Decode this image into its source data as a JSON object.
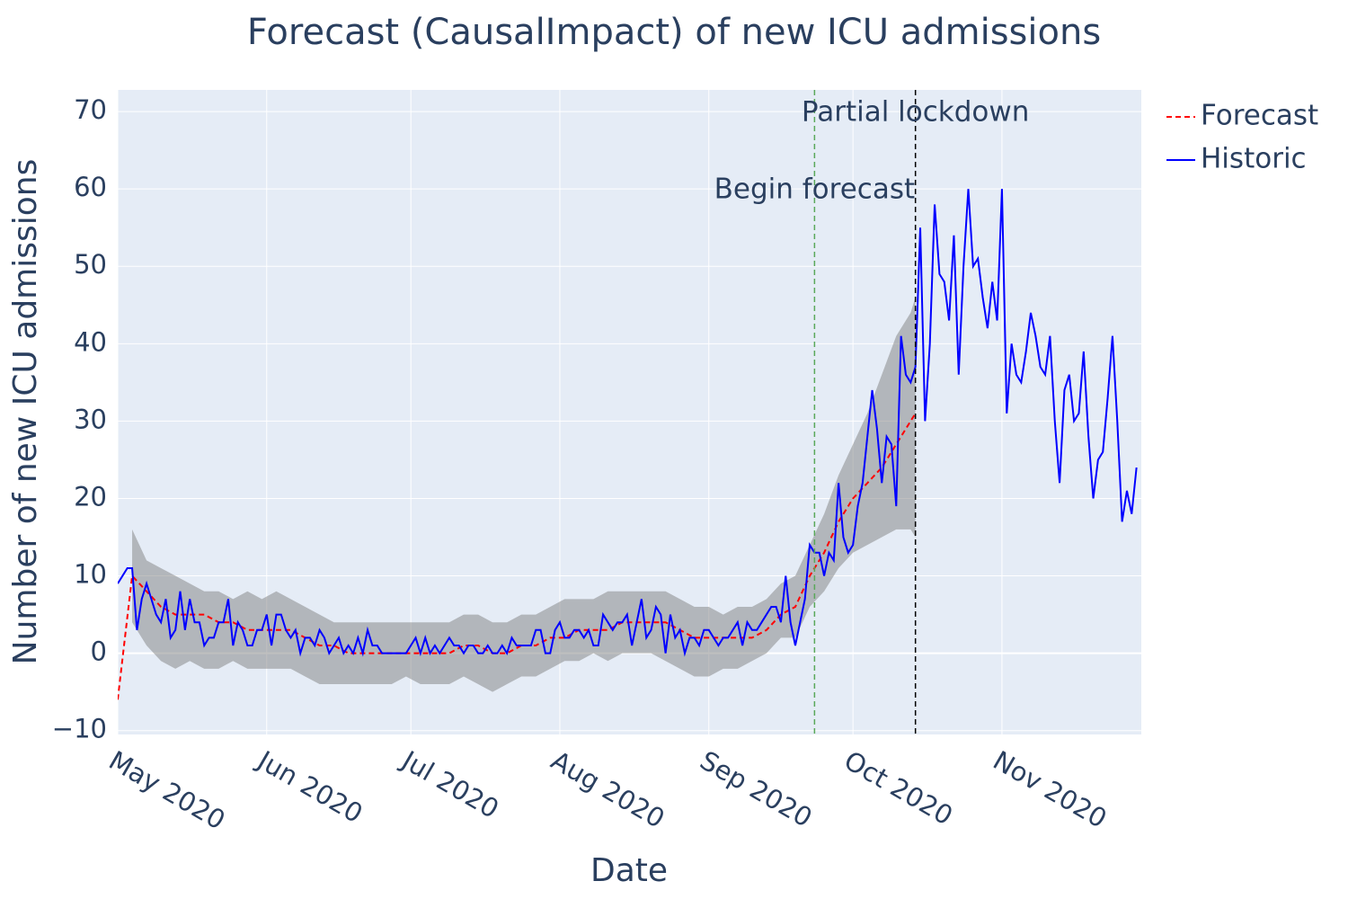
{
  "chart_data": {
    "type": "line",
    "title": "Forecast (CausalImpact) of new ICU admissions",
    "x_label": "Date",
    "y_label": "Number of new ICU admissions",
    "xlim": [
      "2020-05-01",
      "2020-11-30"
    ],
    "ylim": [
      -10.5,
      72.8
    ],
    "xticks": [
      {
        "value": "2020-05-01",
        "label": "May 2020"
      },
      {
        "value": "2020-06-01",
        "label": "Jun 2020"
      },
      {
        "value": "2020-07-01",
        "label": "Jul 2020"
      },
      {
        "value": "2020-08-01",
        "label": "Aug 2020"
      },
      {
        "value": "2020-09-01",
        "label": "Sep 2020"
      },
      {
        "value": "2020-10-01",
        "label": "Oct 2020"
      },
      {
        "value": "2020-11-01",
        "label": "Nov 2020"
      }
    ],
    "yticks": [
      {
        "value": -10,
        "label": "−10"
      },
      0,
      10,
      20,
      30,
      40,
      50,
      60,
      70
    ],
    "grid": true,
    "legend": "outside-right",
    "band_color": "rgba(128,128,128,0.5)",
    "vlines": [
      {
        "x": "2020-09-23",
        "label": "Begin forecast",
        "color": "#5aa85a"
      },
      {
        "x": "2020-10-14",
        "label": "Partial lockdown",
        "color": "#000000"
      }
    ],
    "series": [
      {
        "name": "Forecast",
        "color": "#ff0000",
        "dash": true,
        "x": [
          "2020-05-01",
          "2020-05-04",
          "2020-05-07",
          "2020-05-10",
          "2020-05-13",
          "2020-05-16",
          "2020-05-19",
          "2020-05-22",
          "2020-05-25",
          "2020-05-28",
          "2020-05-31",
          "2020-06-03",
          "2020-06-06",
          "2020-06-09",
          "2020-06-12",
          "2020-06-15",
          "2020-06-18",
          "2020-06-21",
          "2020-06-24",
          "2020-06-27",
          "2020-06-30",
          "2020-07-03",
          "2020-07-06",
          "2020-07-09",
          "2020-07-12",
          "2020-07-15",
          "2020-07-18",
          "2020-07-21",
          "2020-07-24",
          "2020-07-27",
          "2020-07-30",
          "2020-08-02",
          "2020-08-05",
          "2020-08-08",
          "2020-08-11",
          "2020-08-14",
          "2020-08-17",
          "2020-08-20",
          "2020-08-23",
          "2020-08-26",
          "2020-08-29",
          "2020-09-01",
          "2020-09-04",
          "2020-09-07",
          "2020-09-10",
          "2020-09-13",
          "2020-09-16",
          "2020-09-19",
          "2020-09-22",
          "2020-09-25",
          "2020-09-28",
          "2020-10-01",
          "2020-10-04",
          "2020-10-07",
          "2020-10-10",
          "2020-10-13",
          "2020-10-14"
        ],
        "values": [
          -6,
          10,
          8,
          6,
          5,
          5,
          5,
          4,
          4,
          3,
          3,
          3,
          3,
          2,
          1,
          1,
          0,
          0,
          0,
          0,
          0,
          0,
          0,
          0,
          1,
          1,
          0,
          0,
          1,
          1,
          2,
          2,
          3,
          3,
          3,
          4,
          4,
          4,
          4,
          3,
          2,
          2,
          2,
          2,
          2,
          3,
          5,
          6,
          10,
          13,
          17,
          20,
          22,
          24,
          27,
          30,
          31
        ],
        "lower": [
          null,
          4,
          1,
          -1,
          -2,
          -1,
          -2,
          -2,
          -1,
          -2,
          -2,
          -2,
          -2,
          -3,
          -4,
          -4,
          -4,
          -4,
          -4,
          -4,
          -3,
          -4,
          -4,
          -4,
          -3,
          -4,
          -5,
          -4,
          -3,
          -3,
          -2,
          -1,
          -1,
          0,
          -1,
          0,
          0,
          0,
          -1,
          -2,
          -3,
          -3,
          -2,
          -2,
          -1,
          0,
          2,
          2,
          6,
          8,
          11,
          13,
          14,
          15,
          16,
          16,
          15
        ],
        "upper": [
          null,
          16,
          12,
          11,
          10,
          9,
          8,
          8,
          7,
          8,
          7,
          8,
          7,
          6,
          5,
          4,
          4,
          4,
          4,
          4,
          4,
          4,
          4,
          4,
          5,
          5,
          4,
          4,
          5,
          5,
          6,
          7,
          7,
          7,
          8,
          8,
          8,
          8,
          8,
          7,
          6,
          6,
          5,
          6,
          6,
          7,
          9,
          10,
          14,
          18,
          23,
          27,
          31,
          36,
          41,
          44,
          46
        ]
      },
      {
        "name": "Historic",
        "color": "#0000ff",
        "dash": false,
        "x": [
          "2020-05-01",
          "2020-05-02",
          "2020-05-03",
          "2020-05-04",
          "2020-05-05",
          "2020-05-06",
          "2020-05-07",
          "2020-05-08",
          "2020-05-09",
          "2020-05-10",
          "2020-05-11",
          "2020-05-12",
          "2020-05-13",
          "2020-05-14",
          "2020-05-15",
          "2020-05-16",
          "2020-05-17",
          "2020-05-18",
          "2020-05-19",
          "2020-05-20",
          "2020-05-21",
          "2020-05-22",
          "2020-05-23",
          "2020-05-24",
          "2020-05-25",
          "2020-05-26",
          "2020-05-27",
          "2020-05-28",
          "2020-05-29",
          "2020-05-30",
          "2020-05-31",
          "2020-06-01",
          "2020-06-02",
          "2020-06-03",
          "2020-06-04",
          "2020-06-05",
          "2020-06-06",
          "2020-06-07",
          "2020-06-08",
          "2020-06-09",
          "2020-06-10",
          "2020-06-11",
          "2020-06-12",
          "2020-06-13",
          "2020-06-14",
          "2020-06-15",
          "2020-06-16",
          "2020-06-17",
          "2020-06-18",
          "2020-06-19",
          "2020-06-20",
          "2020-06-21",
          "2020-06-22",
          "2020-06-23",
          "2020-06-24",
          "2020-06-25",
          "2020-06-26",
          "2020-06-27",
          "2020-06-28",
          "2020-06-29",
          "2020-06-30",
          "2020-07-01",
          "2020-07-02",
          "2020-07-03",
          "2020-07-04",
          "2020-07-05",
          "2020-07-06",
          "2020-07-07",
          "2020-07-08",
          "2020-07-09",
          "2020-07-10",
          "2020-07-11",
          "2020-07-12",
          "2020-07-13",
          "2020-07-14",
          "2020-07-15",
          "2020-07-16",
          "2020-07-17",
          "2020-07-18",
          "2020-07-19",
          "2020-07-20",
          "2020-07-21",
          "2020-07-22",
          "2020-07-23",
          "2020-07-24",
          "2020-07-25",
          "2020-07-26",
          "2020-07-27",
          "2020-07-28",
          "2020-07-29",
          "2020-07-30",
          "2020-07-31",
          "2020-08-01",
          "2020-08-02",
          "2020-08-03",
          "2020-08-04",
          "2020-08-05",
          "2020-08-06",
          "2020-08-07",
          "2020-08-08",
          "2020-08-09",
          "2020-08-10",
          "2020-08-11",
          "2020-08-12",
          "2020-08-13",
          "2020-08-14",
          "2020-08-15",
          "2020-08-16",
          "2020-08-17",
          "2020-08-18",
          "2020-08-19",
          "2020-08-20",
          "2020-08-21",
          "2020-08-22",
          "2020-08-23",
          "2020-08-24",
          "2020-08-25",
          "2020-08-26",
          "2020-08-27",
          "2020-08-28",
          "2020-08-29",
          "2020-08-30",
          "2020-08-31",
          "2020-09-01",
          "2020-09-02",
          "2020-09-03",
          "2020-09-04",
          "2020-09-05",
          "2020-09-06",
          "2020-09-07",
          "2020-09-08",
          "2020-09-09",
          "2020-09-10",
          "2020-09-11",
          "2020-09-12",
          "2020-09-13",
          "2020-09-14",
          "2020-09-15",
          "2020-09-16",
          "2020-09-17",
          "2020-09-18",
          "2020-09-19",
          "2020-09-20",
          "2020-09-21",
          "2020-09-22",
          "2020-09-23",
          "2020-09-24",
          "2020-09-25",
          "2020-09-26",
          "2020-09-27",
          "2020-09-28",
          "2020-09-29",
          "2020-09-30",
          "2020-10-01",
          "2020-10-02",
          "2020-10-03",
          "2020-10-04",
          "2020-10-05",
          "2020-10-06",
          "2020-10-07",
          "2020-10-08",
          "2020-10-09",
          "2020-10-10",
          "2020-10-11",
          "2020-10-12",
          "2020-10-13",
          "2020-10-14",
          "2020-10-15",
          "2020-10-16",
          "2020-10-17",
          "2020-10-18",
          "2020-10-19",
          "2020-10-20",
          "2020-10-21",
          "2020-10-22",
          "2020-10-23",
          "2020-10-24",
          "2020-10-25",
          "2020-10-26",
          "2020-10-27",
          "2020-10-28",
          "2020-10-29",
          "2020-10-30",
          "2020-10-31",
          "2020-11-01",
          "2020-11-02",
          "2020-11-03",
          "2020-11-04",
          "2020-11-05",
          "2020-11-06",
          "2020-11-07",
          "2020-11-08",
          "2020-11-09",
          "2020-11-10",
          "2020-11-11",
          "2020-11-12",
          "2020-11-13",
          "2020-11-14",
          "2020-11-15",
          "2020-11-16",
          "2020-11-17",
          "2020-11-18",
          "2020-11-19",
          "2020-11-20",
          "2020-11-21",
          "2020-11-22",
          "2020-11-23",
          "2020-11-24",
          "2020-11-25",
          "2020-11-26",
          "2020-11-27",
          "2020-11-28",
          "2020-11-29"
        ],
        "values": [
          9,
          10,
          11,
          11,
          3,
          7,
          9,
          7,
          5,
          4,
          7,
          2,
          3,
          8,
          3,
          7,
          4,
          4,
          1,
          2,
          2,
          4,
          4,
          7,
          1,
          4,
          3,
          1,
          1,
          3,
          3,
          5,
          1,
          5,
          5,
          3,
          2,
          3,
          0,
          2,
          2,
          1,
          3,
          2,
          0,
          1,
          2,
          0,
          1,
          0,
          2,
          0,
          3,
          1,
          1,
          0,
          0,
          0,
          0,
          0,
          0,
          1,
          2,
          0,
          2,
          0,
          1,
          0,
          1,
          2,
          1,
          1,
          0,
          1,
          1,
          0,
          0,
          1,
          0,
          0,
          1,
          0,
          2,
          1,
          1,
          1,
          1,
          3,
          3,
          0,
          0,
          3,
          4,
          2,
          2,
          3,
          3,
          2,
          3,
          1,
          1,
          5,
          4,
          3,
          4,
          4,
          5,
          1,
          4,
          7,
          2,
          3,
          6,
          5,
          0,
          5,
          2,
          3,
          0,
          2,
          2,
          1,
          3,
          3,
          2,
          1,
          2,
          2,
          3,
          4,
          1,
          4,
          3,
          3,
          4,
          5,
          6,
          6,
          4,
          10,
          4,
          1,
          4,
          7,
          14,
          13,
          13,
          10,
          13,
          12,
          22,
          15,
          13,
          14,
          19,
          22,
          28,
          34,
          29,
          22,
          28,
          27,
          19,
          41,
          36,
          35,
          37,
          55,
          30,
          40,
          58,
          49,
          48,
          43,
          54,
          36,
          50,
          60,
          50,
          51,
          46,
          42,
          48,
          43,
          60,
          31,
          40,
          36,
          35,
          39,
          44,
          41,
          37,
          36,
          41,
          30,
          22,
          34,
          36,
          30,
          31,
          39,
          28,
          20,
          25,
          26,
          33,
          41,
          30,
          17,
          21,
          18,
          24
        ]
      }
    ]
  }
}
